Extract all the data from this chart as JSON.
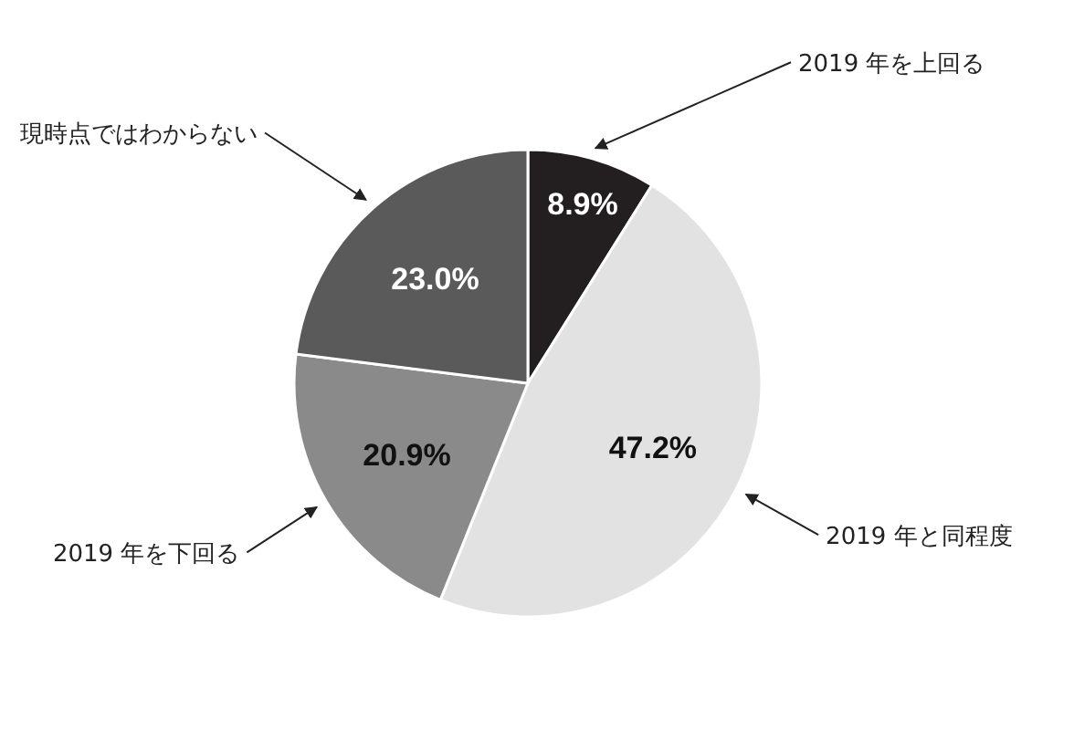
{
  "chart_data": {
    "type": "pie",
    "categories": [
      "2019 年を上回る",
      "2019 年と同程度",
      "2019 年を下回る",
      "現時点ではわからない"
    ],
    "values": [
      8.9,
      47.2,
      20.9,
      23.0
    ],
    "colors": [
      "#231f20",
      "#e2e2e2",
      "#8a8a8a",
      "#5a5a5a"
    ],
    "value_labels": [
      "8.9%",
      "47.2%",
      "20.9%",
      "23.0%"
    ]
  }
}
